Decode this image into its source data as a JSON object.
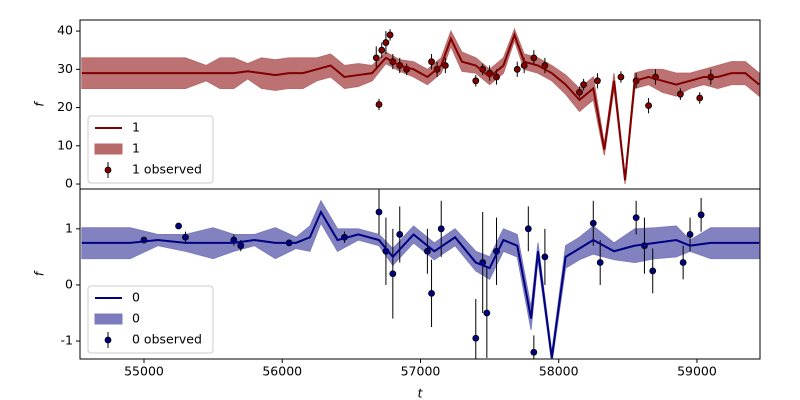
{
  "chart_data": [
    {
      "type": "line",
      "ylabel": "f",
      "legend": "lower left",
      "ylim": [
        -1.3,
        42.9
      ],
      "yticks": [
        0,
        10,
        20,
        30,
        40
      ],
      "xlim": [
        54537,
        59456
      ],
      "x": [
        54550,
        54700,
        54900,
        55100,
        55300,
        55450,
        55550,
        55650,
        55750,
        55850,
        55950,
        56050,
        56150,
        56250,
        56350,
        56450,
        56550,
        56650,
        56750,
        56850,
        56950,
        57050,
        57150,
        57220,
        57300,
        57400,
        57500,
        57600,
        57680,
        57750,
        57850,
        57950,
        58050,
        58150,
        58250,
        58330,
        58400,
        58480,
        58550,
        58650,
        58750,
        58850,
        58950,
        59050,
        59150,
        59250,
        59350,
        59450
      ],
      "series": [
        {
          "name": "1",
          "color": "#800000",
          "values": [
            29,
            29,
            29,
            29,
            29,
            29,
            29,
            29,
            29.5,
            29,
            28.5,
            29,
            29,
            30,
            31,
            28,
            28.5,
            29,
            33,
            31,
            30,
            28,
            31,
            38,
            32,
            31,
            28,
            31,
            39,
            32,
            31,
            29,
            26,
            22,
            25,
            9,
            27,
            1,
            27,
            28,
            27,
            26,
            27,
            28,
            28,
            29,
            29,
            26
          ]
        },
        {
          "name": "1",
          "color": "#b86a6a",
          "lower": [
            25,
            25,
            25,
            25,
            25,
            27,
            25,
            25,
            27.5,
            25,
            24.5,
            25,
            25,
            27,
            28,
            25,
            25.5,
            27,
            31.5,
            29.5,
            28,
            26,
            29,
            36,
            29.5,
            29,
            26,
            29,
            37.5,
            30,
            29,
            27,
            23.5,
            19,
            22,
            7.5,
            25,
            0,
            25,
            26,
            24,
            23,
            25,
            26,
            25,
            26,
            26,
            23
          ],
          "upper": [
            33,
            33,
            33,
            33,
            33,
            31,
            33,
            33,
            31.5,
            33,
            32.5,
            33,
            33,
            33,
            34,
            31,
            31.5,
            31,
            34.5,
            32.5,
            32,
            30,
            33,
            40,
            34.5,
            33,
            30,
            33,
            40.5,
            34,
            33,
            31,
            28.5,
            25,
            28,
            10.5,
            29,
            2,
            29,
            30,
            30,
            29,
            29,
            30,
            31,
            32,
            32,
            29
          ]
        },
        {
          "name": "1 observed",
          "color": "#800000",
          "x": [
            56680,
            56700,
            56720,
            56750,
            56780,
            56800,
            56850,
            56900,
            57080,
            57120,
            57180,
            57400,
            57450,
            57500,
            57550,
            57700,
            57750,
            57820,
            57900,
            58150,
            58180,
            58280,
            58450,
            58560,
            58650,
            58700,
            58880,
            59020,
            59100
          ],
          "values": [
            33,
            20.8,
            35,
            37,
            39,
            32,
            31,
            30,
            32,
            30,
            31,
            27,
            30,
            29,
            28,
            30,
            31,
            33,
            31,
            24,
            26,
            27,
            28,
            27,
            20.5,
            28,
            23.5,
            22.5,
            28
          ],
          "errors": [
            3,
            1.5,
            2,
            3,
            1.5,
            2,
            2,
            1.5,
            2,
            2,
            2,
            1.5,
            1.5,
            2,
            2,
            2,
            2,
            2,
            2,
            1.5,
            1.5,
            2,
            1.5,
            2,
            2,
            2,
            1.5,
            1.5,
            2
          ]
        }
      ]
    },
    {
      "type": "line",
      "ylabel": "f",
      "xlabel": "t",
      "legend": "lower left",
      "ylim": [
        -1.32,
        1.71
      ],
      "yticks": [
        -1,
        0,
        1
      ],
      "xlim": [
        54537,
        59456
      ],
      "xticks": [
        55000,
        56000,
        57000,
        58000,
        59000
      ],
      "x": [
        54550,
        54700,
        54900,
        55100,
        55300,
        55500,
        55650,
        55800,
        55950,
        56100,
        56200,
        56280,
        56400,
        56550,
        56700,
        56800,
        56950,
        57100,
        57250,
        57400,
        57500,
        57600,
        57700,
        57800,
        57850,
        57950,
        58050,
        58150,
        58250,
        58400,
        58550,
        58700,
        58850,
        58950,
        59100,
        59250,
        59450
      ],
      "series": [
        {
          "name": "0",
          "color": "#000080",
          "values": [
            0.75,
            0.75,
            0.75,
            0.8,
            0.75,
            0.75,
            0.75,
            0.8,
            0.75,
            0.75,
            0.85,
            1.3,
            0.8,
            0.9,
            0.8,
            0.5,
            0.9,
            0.6,
            0.85,
            0.4,
            0.3,
            0.8,
            0.7,
            -0.6,
            0.6,
            -1.3,
            0.5,
            0.65,
            0.8,
            0.6,
            0.7,
            0.75,
            0.8,
            0.7,
            0.75,
            0.75,
            0.75
          ]
        },
        {
          "name": "0",
          "color": "#7b7bbd",
          "lower": [
            0.47,
            0.47,
            0.47,
            0.7,
            0.6,
            0.47,
            0.6,
            0.7,
            0.47,
            0.65,
            0.6,
            1.1,
            0.6,
            0.8,
            0.7,
            0.35,
            0.75,
            0.45,
            0.7,
            0.25,
            0.1,
            0.6,
            0.5,
            -0.8,
            0.45,
            -1.4,
            0.3,
            0.45,
            0.55,
            0.45,
            0.4,
            0.47,
            0.5,
            0.6,
            0.47,
            0.47,
            0.47
          ],
          "upper": [
            1.02,
            1.02,
            1.02,
            0.9,
            0.9,
            1.02,
            0.9,
            0.9,
            1.02,
            0.85,
            1.05,
            1.5,
            1.0,
            1.0,
            0.9,
            0.65,
            1.05,
            0.75,
            1.0,
            0.6,
            0.5,
            1.0,
            0.9,
            -0.4,
            0.75,
            -1.2,
            0.7,
            0.85,
            1.05,
            0.75,
            1.0,
            1.02,
            1.05,
            0.8,
            1.02,
            1.02,
            1.02
          ]
        },
        {
          "name": "0 observed",
          "color": "#000080",
          "x": [
            55000,
            55250,
            55300,
            55650,
            55700,
            56050,
            56450,
            56700,
            56750,
            56800,
            56850,
            57050,
            57080,
            57150,
            57400,
            57450,
            57480,
            57550,
            57780,
            57820,
            57900,
            58250,
            58300,
            58560,
            58620,
            58680,
            58900,
            58950,
            59030
          ],
          "values": [
            0.8,
            1.05,
            0.85,
            0.8,
            0.7,
            0.75,
            0.85,
            1.3,
            0.6,
            0.2,
            0.9,
            0.6,
            -0.15,
            1.0,
            -0.95,
            0.4,
            -0.5,
            0.6,
            1.0,
            -1.2,
            0.5,
            1.1,
            0.4,
            1.2,
            0.7,
            0.25,
            0.4,
            0.9,
            1.25
          ],
          "errors": [
            0.05,
            0.05,
            0.1,
            0.1,
            0.1,
            0.05,
            0.1,
            0.4,
            0.6,
            0.8,
            0.5,
            0.4,
            0.6,
            0.5,
            0.7,
            0.9,
            0.8,
            0.6,
            0.4,
            0.3,
            0.5,
            0.4,
            0.4,
            0.3,
            0.5,
            0.4,
            0.3,
            0.3,
            0.3
          ]
        }
      ]
    }
  ]
}
